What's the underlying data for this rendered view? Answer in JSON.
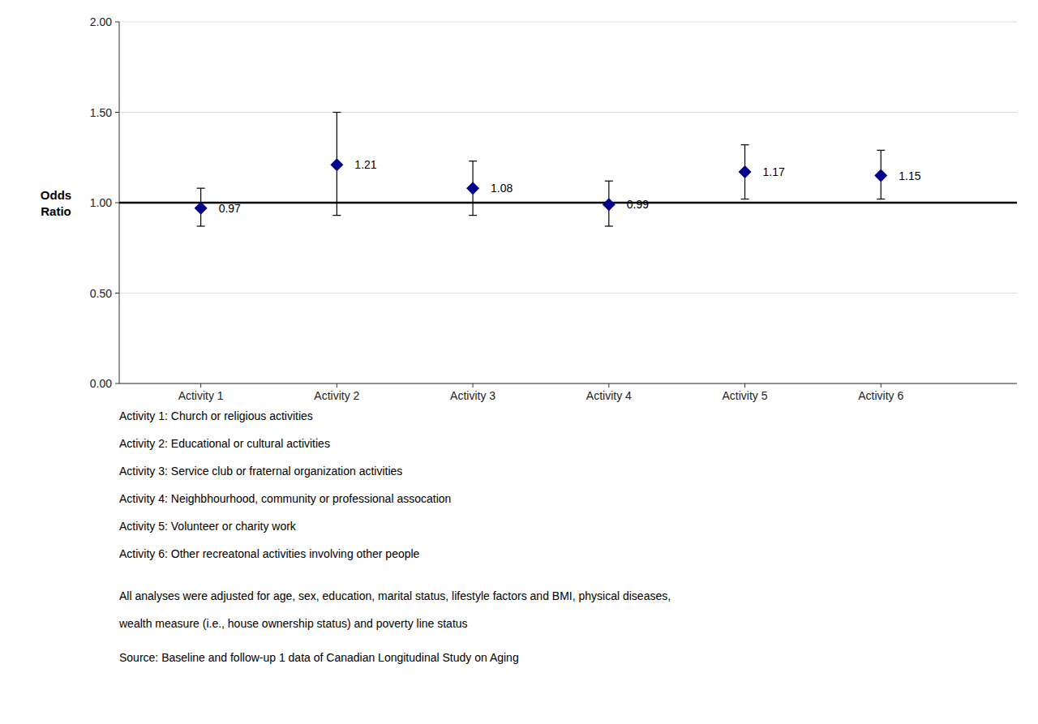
{
  "chart_data": {
    "type": "scatter",
    "marker": "diamond",
    "color": "#00008B",
    "categories": [
      "Activity 1",
      "Activity 2",
      "Activity 3",
      "Activity 4",
      "Activity 5",
      "Activity 6"
    ],
    "values": [
      0.97,
      1.21,
      1.08,
      0.99,
      1.17,
      1.15
    ],
    "ci_lower": [
      0.87,
      0.93,
      0.93,
      0.87,
      1.02,
      1.02
    ],
    "ci_upper": [
      1.08,
      1.5,
      1.23,
      1.12,
      1.32,
      1.29
    ],
    "data_labels": true,
    "reference_line": 1.0,
    "ylim": [
      0.0,
      2.0
    ],
    "yticks": [
      {
        "value": 0.0,
        "label": "0.00"
      },
      {
        "value": 0.5,
        "label": "0.50"
      },
      {
        "value": 1.0,
        "label": "1.00"
      },
      {
        "value": 1.5,
        "label": "1.50"
      },
      {
        "value": 2.0,
        "label": "2.00"
      }
    ],
    "y_label": [
      "Odds",
      "Ratio"
    ],
    "grid": true,
    "notes": [
      "Activity 1: Church or religious activities",
      "Activity 2: Educational or cultural activities",
      "Activity 3: Service club or fraternal organization activities",
      "Activity 4: Neighbhourhood, community or professional assocation",
      "Activity 5: Volunteer or charity work",
      "Activity 6: Other recreatonal activities involving other people"
    ],
    "footnotes": [
      "All analyses were adjusted for age, sex, education, marital status, lifestyle factors and BMI, physical diseases,",
      "wealth measure (i.e., house ownership status) and poverty line status"
    ],
    "source": "Source: Baseline and follow-up 1 data of Canadian Longitudinal Study on Aging"
  }
}
